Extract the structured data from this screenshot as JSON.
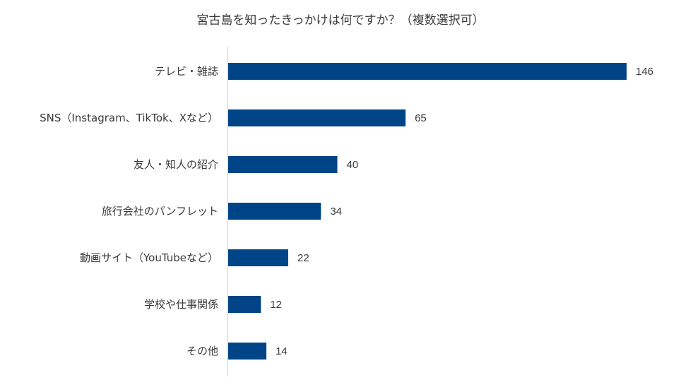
{
  "chart_data": {
    "type": "bar",
    "orientation": "horizontal",
    "title": "宮古島を知ったきっかけは何ですか？（複数選択可）",
    "categories": [
      "テレビ・雑誌",
      "SNS（Instagram、TikTok、Xなど）",
      "友人・知人の紹介",
      "旅行会社のパンフレット",
      "動画サイト（YouTubeなど）",
      "学校や仕事関係",
      "その他"
    ],
    "values": [
      146,
      65,
      40,
      34,
      22,
      12,
      14
    ],
    "xlim": [
      0,
      150
    ],
    "grid": false,
    "data_labels": true,
    "bar_color": "#004488"
  }
}
